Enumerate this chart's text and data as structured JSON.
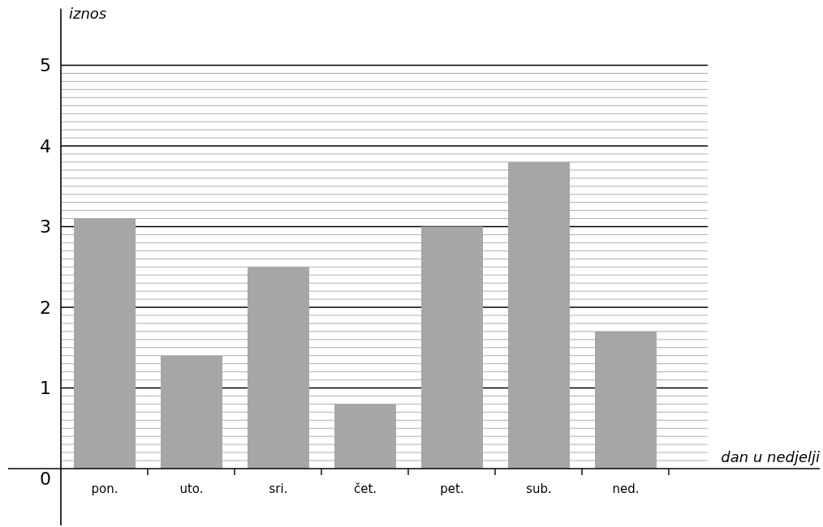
{
  "chart_data": {
    "type": "bar",
    "xlabel": "dan u nedjelji",
    "ylabel": "iznos",
    "categories": [
      "pon.",
      "uto.",
      "sri.",
      "čet.",
      "pet.",
      "sub.",
      "ned."
    ],
    "values": [
      3.1,
      1.4,
      2.5,
      0.8,
      3.0,
      3.8,
      1.7
    ],
    "color": "#a6a6a6",
    "ylim": [
      0,
      5.7
    ],
    "yticks": [
      0,
      1,
      2,
      3,
      4,
      5
    ],
    "grid": true
  }
}
